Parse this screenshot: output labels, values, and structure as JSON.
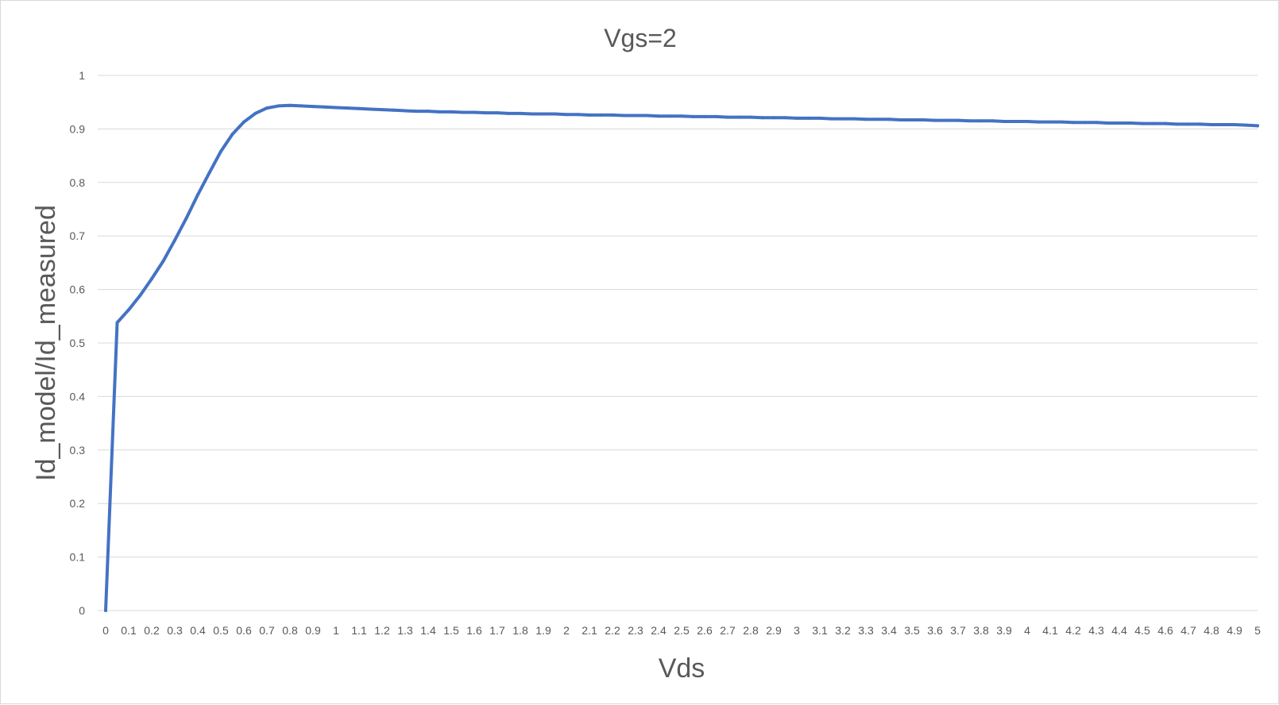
{
  "chart_data": {
    "type": "line",
    "title": "Vgs=2",
    "xlabel": "Vds",
    "ylabel": "Id_model/Id_measured",
    "ylim": [
      0,
      1
    ],
    "yticks": [
      "0",
      "0.1",
      "0.2",
      "0.3",
      "0.4",
      "0.5",
      "0.6",
      "0.7",
      "0.8",
      "0.9",
      "1"
    ],
    "grid": true,
    "legend": "none",
    "colors": {
      "series": "#4472c4",
      "grid": "#d9d9d9",
      "text": "#595959"
    },
    "categories": [
      "0",
      "0.1",
      "0.2",
      "0.3",
      "0.4",
      "0.5",
      "0.6",
      "0.7",
      "0.8",
      "0.9",
      "1",
      "1.1",
      "1.2",
      "1.3",
      "1.4",
      "1.5",
      "1.6",
      "1.7",
      "1.8",
      "1.9",
      "2",
      "2.1",
      "2.2",
      "2.3",
      "2.4",
      "2.5",
      "2.6",
      "2.7",
      "2.8",
      "2.9",
      "3",
      "3.1",
      "3.2",
      "3.3",
      "3.4",
      "3.5",
      "3.6",
      "3.7",
      "3.8",
      "3.9",
      "4",
      "4.1",
      "4.2",
      "4.3",
      "4.4",
      "4.5",
      "4.6",
      "4.7",
      "4.8",
      "4.9",
      "5"
    ],
    "series": [
      {
        "x": [
          0,
          0.05,
          0.1,
          0.15,
          0.2,
          0.25,
          0.3,
          0.35,
          0.4,
          0.45,
          0.5,
          0.55,
          0.6,
          0.65,
          0.7,
          0.75,
          0.8,
          0.85,
          0.9,
          0.95,
          1,
          1.05,
          1.1,
          1.15,
          1.2,
          1.25,
          1.3,
          1.35,
          1.4,
          1.45,
          1.5,
          1.55,
          1.6,
          1.65,
          1.7,
          1.75,
          1.8,
          1.85,
          1.9,
          1.95,
          2,
          2.05,
          2.1,
          2.15,
          2.2,
          2.25,
          2.3,
          2.35,
          2.4,
          2.45,
          2.5,
          2.55,
          2.6,
          2.65,
          2.7,
          2.75,
          2.8,
          2.85,
          2.9,
          2.95,
          3,
          3.05,
          3.1,
          3.15,
          3.2,
          3.25,
          3.3,
          3.35,
          3.4,
          3.45,
          3.5,
          3.55,
          3.6,
          3.65,
          3.7,
          3.75,
          3.8,
          3.85,
          3.9,
          3.95,
          4,
          4.05,
          4.1,
          4.15,
          4.2,
          4.25,
          4.3,
          4.35,
          4.4,
          4.45,
          4.5,
          4.55,
          4.6,
          4.65,
          4.7,
          4.75,
          4.8,
          4.85,
          4.9,
          4.95,
          5
        ],
        "values": [
          0,
          0.538,
          0.562,
          0.589,
          0.62,
          0.653,
          0.692,
          0.733,
          0.777,
          0.818,
          0.858,
          0.89,
          0.913,
          0.929,
          0.939,
          0.943,
          0.944,
          0.943,
          0.942,
          0.941,
          0.94,
          0.939,
          0.938,
          0.937,
          0.936,
          0.935,
          0.934,
          0.933,
          0.933,
          0.932,
          0.932,
          0.931,
          0.931,
          0.93,
          0.93,
          0.929,
          0.929,
          0.928,
          0.928,
          0.928,
          0.927,
          0.927,
          0.926,
          0.926,
          0.926,
          0.925,
          0.925,
          0.925,
          0.924,
          0.924,
          0.924,
          0.923,
          0.923,
          0.923,
          0.922,
          0.922,
          0.922,
          0.921,
          0.921,
          0.921,
          0.92,
          0.92,
          0.92,
          0.919,
          0.919,
          0.919,
          0.918,
          0.918,
          0.918,
          0.917,
          0.917,
          0.917,
          0.916,
          0.916,
          0.916,
          0.915,
          0.915,
          0.915,
          0.914,
          0.914,
          0.914,
          0.913,
          0.913,
          0.913,
          0.912,
          0.912,
          0.912,
          0.911,
          0.911,
          0.911,
          0.91,
          0.91,
          0.91,
          0.909,
          0.909,
          0.909,
          0.908,
          0.908,
          0.908,
          0.907,
          0.906
        ]
      }
    ]
  }
}
